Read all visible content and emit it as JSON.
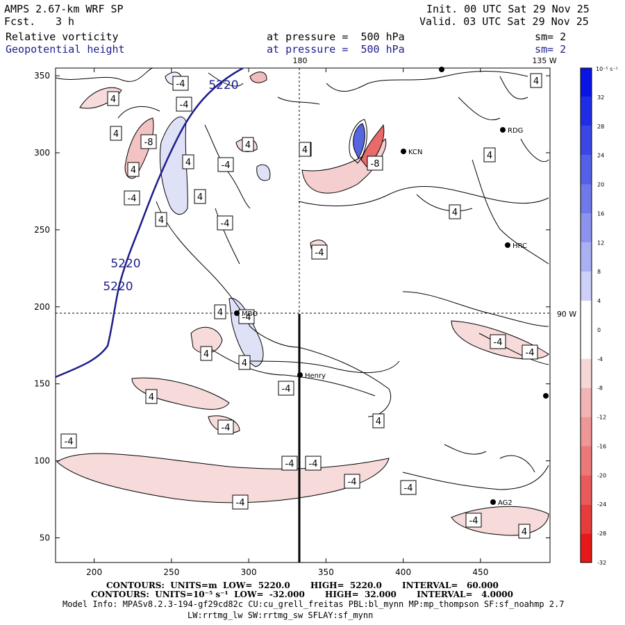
{
  "header": {
    "title": "AMPS 2.67-km WRF SP",
    "fcst_label": "Fcst.",
    "fcst_value": "3 h",
    "init": "Init. 00 UTC Sat 29 Nov 25",
    "valid": "Valid. 03 UTC Sat 29 Nov 25",
    "field1": "Relative vorticity",
    "field1_level": "at pressure =  500 hPa",
    "field1_sm": "sm= 2",
    "field2": "Geopotential height",
    "field2_level": "at pressure =  500 hPa",
    "field2_sm": "sm= 2"
  },
  "chart_data": {
    "type": "heatmap",
    "xlim": [
      175,
      495
    ],
    "ylim": [
      34,
      355
    ],
    "x_ticks": [
      200,
      250,
      300,
      350,
      400,
      450
    ],
    "y_ticks": [
      50,
      100,
      150,
      200,
      250,
      300,
      350
    ],
    "meridian_labels": [
      "180",
      "135 W",
      "90 W"
    ],
    "colorbar": {
      "unit": "10⁻⁵ s⁻¹",
      "ticks": [
        32,
        28,
        24,
        20,
        16,
        12,
        8,
        4,
        0,
        -4,
        -8,
        -12,
        -16,
        -20,
        -24,
        -28,
        -32
      ],
      "colors": [
        "#0b14e6",
        "#1f2ee6",
        "#3a46e6",
        "#5560e8",
        "#6f79ea",
        "#8c93ee",
        "#aab0f2",
        "#cdd0f7",
        "#ffffff",
        "#ffffff",
        "#f7d6d6",
        "#f2b4b4",
        "#ef9696",
        "#ec7878",
        "#ea5a5a",
        "#e73c3c",
        "#e61818"
      ]
    },
    "contour_labels_vorticity": [
      "-4",
      "4",
      "-4",
      "4",
      "-8",
      "4",
      "4",
      "-4",
      "4",
      "4",
      "-4",
      "4",
      "4",
      "-4",
      "4",
      "4",
      "-8",
      "4",
      "-4",
      "4",
      "-4",
      "4",
      "4",
      "-4",
      "4",
      "4",
      "-4",
      "-4",
      "-4",
      "-4",
      "-4",
      "-4",
      "-4",
      "4",
      "-4",
      "-4",
      "-4",
      "4"
    ],
    "contour_labels_height": [
      "5220",
      "5220",
      "5220"
    ],
    "stations": [
      "RDG",
      "KCN",
      "HRC",
      "MBO",
      "Henry",
      "AG2"
    ],
    "footer": {
      "line1": "CONTOURS:  UNITS=m  LOW=  5220.0       HIGH=  5220.0       INTERVAL=   60.000",
      "line2": "CONTOURS:  UNITS=10⁻⁵ s⁻¹  LOW=  -32.000       HIGH=  32.000       INTERVAL=   4.0000",
      "line3": "Model Info: MPASv8.2.3-194-gf29cd82c CU:cu_grell_freitas PBL:bl_mynn MP:mp_thompson SF:sf_noahmp 2.7",
      "line4": "LW:rrtmg_lw SW:rrtmg_sw SFLAY:sf_mynn"
    }
  }
}
